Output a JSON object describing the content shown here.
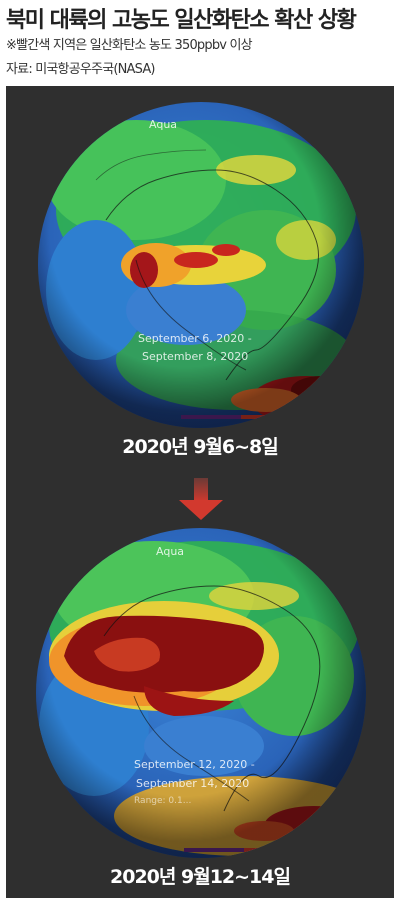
{
  "header": {
    "title": "북미 대륙의 고농도 일산화탄소 확산 상황",
    "note": "※빨간색 지역은 일산화탄소 농도 350ppbv 이상",
    "source": "자료: 미국항공우주국(NASA)"
  },
  "panels": [
    {
      "satellite": "Aqua",
      "date_start": "September 6, 2020 -",
      "date_end": "September 8, 2020",
      "caption": "2020년 9월6~8일"
    },
    {
      "satellite": "Aqua",
      "date_start": "September 12, 2020 -",
      "date_end": "September 14, 2020",
      "range_text": "Range: 0.1...",
      "caption": "2020년 9월12~14일"
    }
  ],
  "colors": {
    "panel_bg": "#2f2f2f",
    "ocean_blue": "#2e6fc4",
    "land_green": "#2fb34f",
    "co_high_red": "#8a1010",
    "arrow": "#c23a30"
  }
}
